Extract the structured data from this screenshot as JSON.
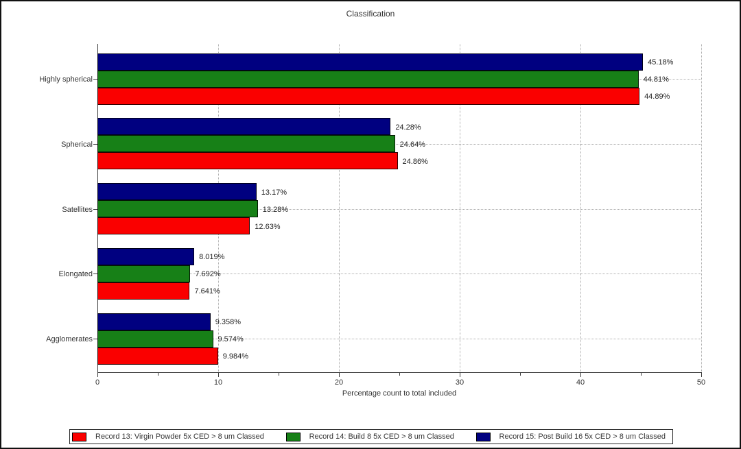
{
  "title": "Classification",
  "chart_data": {
    "type": "bar",
    "orientation": "horizontal",
    "title": "Classification",
    "xlabel": "Percentage count to total included",
    "xlim": [
      0,
      50
    ],
    "xticks": [
      0,
      10,
      20,
      30,
      40,
      50
    ],
    "minor_tick_step": 5,
    "grid": "dotted vertical lines at major x ticks, dotted horizontal lines at category centers",
    "legend_position": "bottom",
    "bar_order_top_to_bottom": [
      "Record 15",
      "Record 14",
      "Record 13"
    ],
    "categories": [
      "Highly spherical",
      "Spherical",
      "Satellites",
      "Elongated",
      "Agglomerates"
    ],
    "series": [
      {
        "name": "Record 13: Virgin Powder 5x CED > 8 um Classed",
        "color": "#fa0000",
        "values": [
          44.89,
          24.86,
          12.63,
          7.641,
          9.984
        ],
        "labels": [
          "44.89%",
          "24.86%",
          "12.63%",
          "7.641%",
          "9.984%"
        ]
      },
      {
        "name": "Record 14: Build 8 5x CED > 8 um Classed",
        "color": "#178017",
        "values": [
          44.81,
          24.64,
          13.28,
          7.692,
          9.574
        ],
        "labels": [
          "44.81%",
          "24.64%",
          "13.28%",
          "7.692%",
          "9.574%"
        ]
      },
      {
        "name": "Record 15: Post Build 16 5x CED > 8 um Classed",
        "color": "#000080",
        "values": [
          45.18,
          24.28,
          13.17,
          8.019,
          9.358
        ],
        "labels": [
          "45.18%",
          "24.28%",
          "13.17%",
          "8.019%",
          "9.358%"
        ]
      }
    ]
  }
}
